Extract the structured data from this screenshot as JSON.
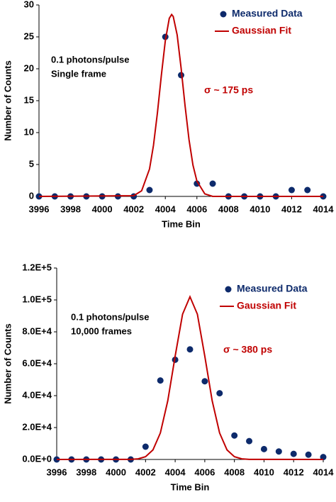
{
  "chart_data": [
    {
      "type": "scatter",
      "xlabel": "Time Bin",
      "ylabel": "Number of Counts",
      "xlim": [
        3996,
        4014
      ],
      "xticks": [
        3996,
        3998,
        4000,
        4002,
        4004,
        4006,
        4008,
        4010,
        4012,
        4014
      ],
      "ylim": [
        0,
        30
      ],
      "yticks": [
        0,
        5,
        10,
        15,
        20,
        25,
        30
      ],
      "annotations": [
        "0.1 photons/pulse",
        "Single frame"
      ],
      "sigma_label": "σ ~ 175 ps",
      "sigma_color": "#c00000",
      "series": [
        {
          "name": "Measured Data",
          "color": "#0d2a6b",
          "kind": "scatter",
          "x": [
            3996,
            3997,
            3998,
            3999,
            4000,
            4001,
            4002,
            4003,
            4004,
            4005,
            4006,
            4007,
            4008,
            4009,
            4010,
            4011,
            4012,
            4013,
            4014
          ],
          "values": [
            0,
            0,
            0,
            0,
            0,
            0,
            0,
            1,
            25,
            19,
            2,
            2,
            0,
            0,
            0,
            0,
            1,
            1,
            0
          ]
        },
        {
          "name": "Gaussian Fit",
          "color": "#c00000",
          "kind": "line",
          "x": [
            3996,
            4002,
            4002.5,
            4003,
            4003.25,
            4003.5,
            4003.75,
            4004,
            4004.25,
            4004.4,
            4004.5,
            4004.75,
            4005,
            4005.25,
            4005.5,
            4005.75,
            4006,
            4006.5,
            4007,
            4014
          ],
          "values": [
            0,
            0.11,
            0.88,
            4.3,
            8.0,
            13.1,
            19.0,
            24.4,
            27.9,
            28.5,
            28.2,
            25.3,
            20.1,
            14.2,
            8.9,
            4.9,
            2.4,
            0.4,
            0,
            0
          ]
        }
      ]
    },
    {
      "type": "scatter",
      "xlabel": "Time Bin",
      "ylabel": "Number of Counts",
      "xlim": [
        3996,
        4014
      ],
      "xticks": [
        3996,
        3998,
        4000,
        4002,
        4004,
        4006,
        4008,
        4010,
        4012,
        4014
      ],
      "ylim": [
        0,
        120000
      ],
      "yticks": [
        {
          "value": 0,
          "label": "0.0E+0"
        },
        {
          "value": 20000,
          "label": "2.0E+4"
        },
        {
          "value": 40000,
          "label": "4.0E+4"
        },
        {
          "value": 60000,
          "label": "6.0E+4"
        },
        {
          "value": 80000,
          "label": "8.0E+4"
        },
        {
          "value": 100000,
          "label": "1.0E+5"
        },
        {
          "value": 120000,
          "label": "1.2E+5"
        }
      ],
      "annotations": [
        "0.1 photons/pulse",
        "10,000 frames"
      ],
      "sigma_label": "σ ~ 380 ps",
      "sigma_color": "#c00000",
      "series": [
        {
          "name": "Measured Data",
          "color": "#0d2a6b",
          "kind": "scatter",
          "x": [
            3996,
            3997,
            3998,
            3999,
            4000,
            4001,
            4002,
            4003,
            4004,
            4005,
            4006,
            4007,
            4008,
            4009,
            4010,
            4011,
            4012,
            4013,
            4014
          ],
          "values": [
            0,
            0,
            0,
            0,
            0,
            0,
            8000,
            49500,
            62500,
            69000,
            49000,
            41500,
            15000,
            11500,
            6500,
            5000,
            3500,
            3000,
            1500
          ]
        },
        {
          "name": "Gaussian Fit",
          "color": "#c00000",
          "kind": "line",
          "x": [
            3996,
            4001,
            4001.5,
            4002,
            4002.5,
            4003,
            4003.5,
            4004,
            4004.5,
            4005,
            4005.5,
            4006,
            4006.5,
            4007,
            4007.5,
            4008,
            4008.5,
            4009,
            4014
          ],
          "values": [
            0,
            72,
            394,
            1721,
            5996,
            16626,
            36771,
            64811,
            91066,
            102000,
            91066,
            64811,
            36771,
            16626,
            5996,
            1721,
            394,
            72,
            0
          ]
        }
      ]
    }
  ]
}
